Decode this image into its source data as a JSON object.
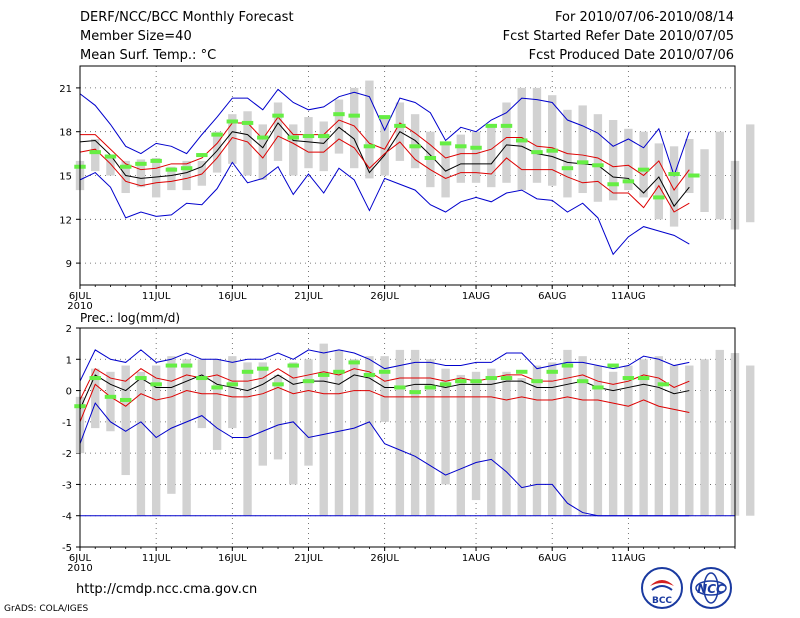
{
  "header": {
    "title": "DERF/NCC/BCC Monthly Forecast",
    "member_size": "Member Size=40",
    "variable": "Mean Surf. Temp.: °C",
    "forecast_range": "For 2010/07/06-2010/08/14",
    "fcst_started": "Fcst Started Refer Date 2010/07/05",
    "fcst_produced": "Fcst Produced Date 2010/07/06"
  },
  "footer": {
    "url": "http://cmdp.ncc.cma.gov.cn",
    "credit": "GrADS: COLA/IGES",
    "logo_left_text": "BCC",
    "logo_right_text": "NCC"
  },
  "colors": {
    "bar": "#d2d2d2",
    "obs": "#66ee44",
    "mean": "#000000",
    "pct": "#dd0000",
    "env": "#0000cc",
    "grid": "#555555"
  },
  "chart_data": [
    {
      "type": "line",
      "title": "Mean Surf. Temp.: °C",
      "ylim": [
        7.5,
        22.5
      ],
      "yticks": [
        9,
        12,
        15,
        18,
        21
      ],
      "x_range": [
        0,
        43
      ],
      "xticks": [
        {
          "x": 0,
          "label": "6JUL",
          "sub": "2010"
        },
        {
          "x": 5,
          "label": "11JUL"
        },
        {
          "x": 10,
          "label": "16JUL"
        },
        {
          "x": 15,
          "label": "21JUL"
        },
        {
          "x": 20,
          "label": "26JUL"
        },
        {
          "x": 26,
          "label": "1AUG"
        },
        {
          "x": 31,
          "label": "6AUG"
        },
        {
          "x": 36,
          "label": "11AUG"
        }
      ],
      "series": [
        {
          "name": "upper envelope",
          "role": "env",
          "values": [
            20.6,
            19.8,
            18.5,
            17.0,
            16.5,
            17.2,
            17.0,
            16.5,
            17.8,
            19.0,
            20.3,
            20.3,
            19.5,
            20.9,
            20.0,
            19.5,
            19.7,
            20.4,
            20.7,
            20.4,
            18.1,
            20.3,
            20.0,
            19.3,
            17.4,
            18.3,
            18.0,
            18.8,
            19.3,
            20.3,
            20.2,
            20.0,
            18.8,
            18.4,
            17.9,
            17.0,
            17.5,
            16.9,
            18.2,
            15.0,
            18.0
          ]
        },
        {
          "name": "upper percentile",
          "role": "pct",
          "values": [
            17.8,
            17.8,
            16.8,
            15.8,
            15.4,
            15.5,
            15.8,
            15.8,
            16.2,
            17.2,
            18.6,
            18.6,
            17.5,
            19.0,
            17.8,
            17.8,
            17.8,
            18.8,
            18.4,
            17.2,
            16.8,
            18.6,
            17.9,
            17.1,
            16.2,
            16.5,
            16.5,
            16.8,
            17.6,
            17.6,
            17.0,
            16.9,
            16.5,
            16.4,
            16.2,
            15.6,
            15.7,
            15.0,
            16.0,
            14.0,
            15.4
          ]
        },
        {
          "name": "ensemble mean",
          "role": "mean",
          "values": [
            17.3,
            17.4,
            16.4,
            15.0,
            14.8,
            14.9,
            15.0,
            15.2,
            15.6,
            16.7,
            18.0,
            17.8,
            16.9,
            18.6,
            17.4,
            17.3,
            17.2,
            18.3,
            17.5,
            15.2,
            16.4,
            18.0,
            17.4,
            16.4,
            15.3,
            15.8,
            15.8,
            15.8,
            17.1,
            17.0,
            16.5,
            16.3,
            15.9,
            15.8,
            15.7,
            14.9,
            14.8,
            13.8,
            14.9,
            12.9,
            14.2
          ]
        },
        {
          "name": "lower percentile",
          "role": "pct",
          "values": [
            16.6,
            16.8,
            15.8,
            14.6,
            14.3,
            14.5,
            14.6,
            14.8,
            15.1,
            16.2,
            17.6,
            17.3,
            16.2,
            17.7,
            17.2,
            16.6,
            16.6,
            17.5,
            16.9,
            15.5,
            16.5,
            17.3,
            16.1,
            15.4,
            14.8,
            15.2,
            15.2,
            15.1,
            16.2,
            15.4,
            15.4,
            15.4,
            14.9,
            14.5,
            14.6,
            13.8,
            13.8,
            12.8,
            14.3,
            12.5,
            13.1
          ]
        },
        {
          "name": "lower envelope",
          "role": "env",
          "values": [
            14.7,
            15.2,
            14.2,
            12.1,
            12.5,
            12.2,
            12.3,
            13.1,
            13.0,
            14.1,
            15.9,
            14.5,
            14.8,
            15.6,
            13.7,
            15.1,
            13.8,
            15.5,
            14.7,
            12.6,
            14.8,
            14.4,
            14.0,
            13.0,
            12.5,
            13.2,
            13.5,
            13.2,
            13.8,
            14.0,
            13.4,
            13.3,
            12.5,
            13.1,
            12.1,
            9.6,
            10.8,
            11.5,
            11.2,
            10.9,
            10.3
          ]
        }
      ],
      "boxes": [
        [
          14.0,
          16.0
        ],
        [
          15.3,
          17.5
        ],
        [
          15.0,
          16.4
        ],
        [
          13.8,
          16.0
        ],
        [
          14.2,
          16.1
        ],
        [
          13.5,
          16.2
        ],
        [
          14.0,
          15.6
        ],
        [
          14.0,
          16.0
        ],
        [
          14.3,
          16.0
        ],
        [
          15.2,
          18.0
        ],
        [
          15.8,
          19.2
        ],
        [
          15.0,
          19.4
        ],
        [
          14.7,
          18.5
        ],
        [
          16.0,
          20.0
        ],
        [
          15.0,
          18.5
        ],
        [
          15.5,
          19.0
        ],
        [
          15.3,
          18.7
        ],
        [
          16.5,
          20.2
        ],
        [
          15.5,
          21.0
        ],
        [
          14.8,
          21.5
        ],
        [
          15.0,
          19.0
        ],
        [
          16.0,
          20.0
        ],
        [
          15.5,
          19.2
        ],
        [
          14.2,
          18.0
        ],
        [
          13.5,
          17.2
        ],
        [
          14.5,
          17.8
        ],
        [
          14.5,
          18.0
        ],
        [
          14.2,
          18.5
        ],
        [
          14.5,
          20.0
        ],
        [
          14.0,
          21.0
        ],
        [
          14.5,
          21.0
        ],
        [
          14.3,
          20.5
        ],
        [
          13.5,
          19.5
        ],
        [
          13.8,
          19.8
        ],
        [
          13.2,
          19.2
        ],
        [
          13.3,
          18.8
        ],
        [
          14.0,
          18.2
        ],
        [
          13.5,
          18.0
        ],
        [
          12.0,
          17.2
        ],
        [
          11.5,
          17.0
        ],
        [
          13.8,
          17.5
        ],
        [
          12.5,
          16.8
        ],
        [
          12.0,
          18.0
        ],
        [
          11.3,
          16.0
        ],
        [
          11.8,
          18.5
        ]
      ],
      "obs": [
        15.6,
        16.6,
        16.3,
        15.6,
        15.8,
        16.0,
        15.4,
        15.5,
        16.4,
        17.8,
        18.7,
        18.6,
        17.6,
        19.1,
        17.6,
        17.7,
        17.7,
        19.2,
        19.1,
        17.0,
        19.0,
        18.4,
        17.0,
        16.2,
        17.2,
        17.0,
        16.9,
        18.4,
        18.4,
        17.4,
        16.6,
        16.7,
        15.5,
        15.9,
        15.7,
        14.4,
        14.6,
        15.4,
        13.5,
        15.1,
        15.0
      ],
      "obs_x": [
        0,
        1,
        2,
        3,
        4,
        5,
        6,
        7,
        8,
        9,
        10,
        11,
        12,
        13,
        14,
        15,
        16,
        17,
        18,
        19,
        20,
        21,
        22,
        23,
        24,
        25,
        26,
        27,
        28,
        29,
        30,
        31,
        32,
        33,
        34,
        35,
        36,
        37,
        38,
        39,
        40.3
      ]
    },
    {
      "type": "line",
      "title": "Prec.: log(mm/d)",
      "ylim": [
        -5,
        2
      ],
      "yticks": [
        -5,
        -4,
        -3,
        -2,
        -1,
        0,
        1,
        2
      ],
      "x_range": [
        0,
        43
      ],
      "xticks": [
        {
          "x": 0,
          "label": "6JUL",
          "sub": "2010"
        },
        {
          "x": 5,
          "label": "11JUL"
        },
        {
          "x": 10,
          "label": "16JUL"
        },
        {
          "x": 15,
          "label": "21JUL"
        },
        {
          "x": 20,
          "label": "26JUL"
        },
        {
          "x": 26,
          "label": "1AUG"
        },
        {
          "x": 31,
          "label": "6AUG"
        },
        {
          "x": 36,
          "label": "11AUG"
        }
      ],
      "series": [
        {
          "name": "upper envelope",
          "role": "env",
          "values": [
            0.3,
            1.3,
            1.0,
            0.9,
            1.3,
            0.9,
            1.0,
            1.2,
            1.0,
            1.0,
            0.9,
            1.0,
            1.0,
            1.2,
            1.0,
            1.3,
            1.2,
            1.3,
            1.2,
            1.0,
            0.7,
            0.8,
            0.9,
            0.9,
            0.8,
            0.8,
            0.9,
            0.9,
            1.2,
            1.2,
            0.7,
            0.8,
            0.9,
            0.9,
            0.8,
            0.7,
            0.8,
            1.1,
            1.0,
            0.8,
            0.9
          ]
        },
        {
          "name": "upper percentile",
          "role": "pct",
          "values": [
            -0.3,
            0.7,
            0.4,
            0.3,
            0.7,
            0.4,
            0.3,
            0.5,
            0.4,
            0.5,
            0.3,
            0.3,
            0.4,
            0.7,
            0.4,
            0.5,
            0.6,
            0.5,
            0.7,
            0.6,
            0.3,
            0.4,
            0.4,
            0.4,
            0.3,
            0.4,
            0.3,
            0.4,
            0.5,
            0.5,
            0.3,
            0.3,
            0.4,
            0.5,
            0.3,
            0.2,
            0.3,
            0.5,
            0.4,
            0.1,
            0.3
          ]
        },
        {
          "name": "ensemble mean",
          "role": "mean",
          "values": [
            -0.6,
            0.5,
            0.2,
            0.0,
            0.4,
            0.1,
            0.1,
            0.3,
            0.5,
            0.2,
            0.1,
            0.0,
            0.2,
            0.5,
            0.2,
            0.3,
            0.3,
            0.2,
            0.5,
            0.4,
            0.1,
            0.1,
            0.2,
            0.2,
            0.1,
            0.2,
            0.2,
            0.2,
            0.3,
            0.3,
            0.1,
            0.1,
            0.2,
            0.3,
            0.1,
            0.0,
            0.1,
            0.2,
            0.1,
            -0.1,
            0.0
          ]
        },
        {
          "name": "lower percentile",
          "role": "pct",
          "values": [
            -1.0,
            0.2,
            -0.2,
            -0.5,
            -0.1,
            -0.3,
            -0.2,
            0.0,
            -0.1,
            -0.1,
            -0.2,
            -0.2,
            -0.1,
            0.1,
            -0.1,
            0.0,
            -0.1,
            -0.1,
            0.0,
            0.0,
            -0.2,
            -0.2,
            -0.2,
            -0.2,
            -0.2,
            -0.2,
            -0.2,
            -0.2,
            -0.3,
            -0.2,
            -0.3,
            -0.3,
            -0.2,
            -0.3,
            -0.3,
            -0.4,
            -0.5,
            -0.3,
            -0.5,
            -0.6,
            -0.7
          ]
        },
        {
          "name": "lower envelope",
          "role": "env",
          "values": [
            -1.7,
            -0.4,
            -1.0,
            -1.3,
            -1.0,
            -1.5,
            -1.2,
            -1.0,
            -0.8,
            -1.2,
            -1.5,
            -1.5,
            -1.3,
            -1.1,
            -1.0,
            -1.5,
            -1.4,
            -1.3,
            -1.2,
            -1.0,
            -1.7,
            -1.9,
            -2.1,
            -2.4,
            -2.7,
            -2.5,
            -2.3,
            -2.2,
            -2.6,
            -3.1,
            -3.0,
            -3.0,
            -3.6,
            -3.9,
            -4.0,
            -4.0,
            -4.0,
            -4.0,
            -4.0,
            -4.0,
            -4.0
          ]
        }
      ],
      "floor": -4,
      "boxes": [
        [
          -2.0,
          -0.2
        ],
        [
          -1.2,
          0.7
        ],
        [
          -1.3,
          0.6
        ],
        [
          -2.7,
          0.8
        ],
        [
          -4.0,
          0.6
        ],
        [
          -4.0,
          0.8
        ],
        [
          -3.3,
          1.1
        ],
        [
          -4.0,
          1.0
        ],
        [
          -1.2,
          1.0
        ],
        [
          -1.9,
          1.0
        ],
        [
          -1.2,
          1.1
        ],
        [
          -4.0,
          0.9
        ],
        [
          -2.4,
          0.9
        ],
        [
          -2.2,
          0.5
        ],
        [
          -3.0,
          0.9
        ],
        [
          -2.4,
          1.0
        ],
        [
          -4.0,
          1.5
        ],
        [
          -4.0,
          1.3
        ],
        [
          -4.0,
          1.0
        ],
        [
          -4.0,
          1.1
        ],
        [
          -1.0,
          1.1
        ],
        [
          -4.0,
          1.3
        ],
        [
          -4.0,
          1.3
        ],
        [
          -4.0,
          1.0
        ],
        [
          -3.0,
          0.7
        ],
        [
          -4.0,
          0.5
        ],
        [
          -3.5,
          0.6
        ],
        [
          -4.0,
          0.7
        ],
        [
          -4.0,
          0.6
        ],
        [
          -4.0,
          0.4
        ],
        [
          -4.0,
          0.8
        ],
        [
          -4.0,
          0.9
        ],
        [
          -4.0,
          1.3
        ],
        [
          -4.0,
          1.1
        ],
        [
          -4.0,
          0.8
        ],
        [
          -4.0,
          0.6
        ],
        [
          -4.0,
          0.8
        ],
        [
          -4.0,
          1.0
        ],
        [
          -4.0,
          1.1
        ],
        [
          -4.0,
          0.8
        ],
        [
          -4.0,
          0.8
        ],
        [
          -4.0,
          1.0
        ],
        [
          -4.0,
          1.3
        ],
        [
          -4.0,
          1.2
        ],
        [
          -4.0,
          0.8
        ]
      ],
      "obs": [
        -0.5,
        0.4,
        -0.2,
        -0.3,
        0.4,
        0.2,
        0.8,
        0.8,
        0.4,
        0.1,
        0.2,
        0.6,
        0.7,
        0.2,
        0.8,
        0.3,
        0.5,
        0.6,
        0.9,
        0.5,
        0.6,
        0.1,
        -0.05,
        0.1,
        0.2,
        0.3,
        0.3,
        0.4,
        0.4,
        0.6,
        0.3,
        0.6,
        0.8,
        0.3,
        0.1,
        0.8,
        0.4,
        0.4,
        0.2
      ],
      "obs_x": [
        0,
        1,
        2,
        3,
        4,
        5,
        6,
        7,
        8,
        9,
        10,
        11,
        12,
        13,
        14,
        15,
        16,
        17,
        18,
        19,
        20,
        21,
        22,
        23,
        24,
        25,
        26,
        27,
        28,
        29,
        30,
        31,
        32,
        33,
        34,
        35,
        36,
        37,
        38.3
      ]
    }
  ]
}
